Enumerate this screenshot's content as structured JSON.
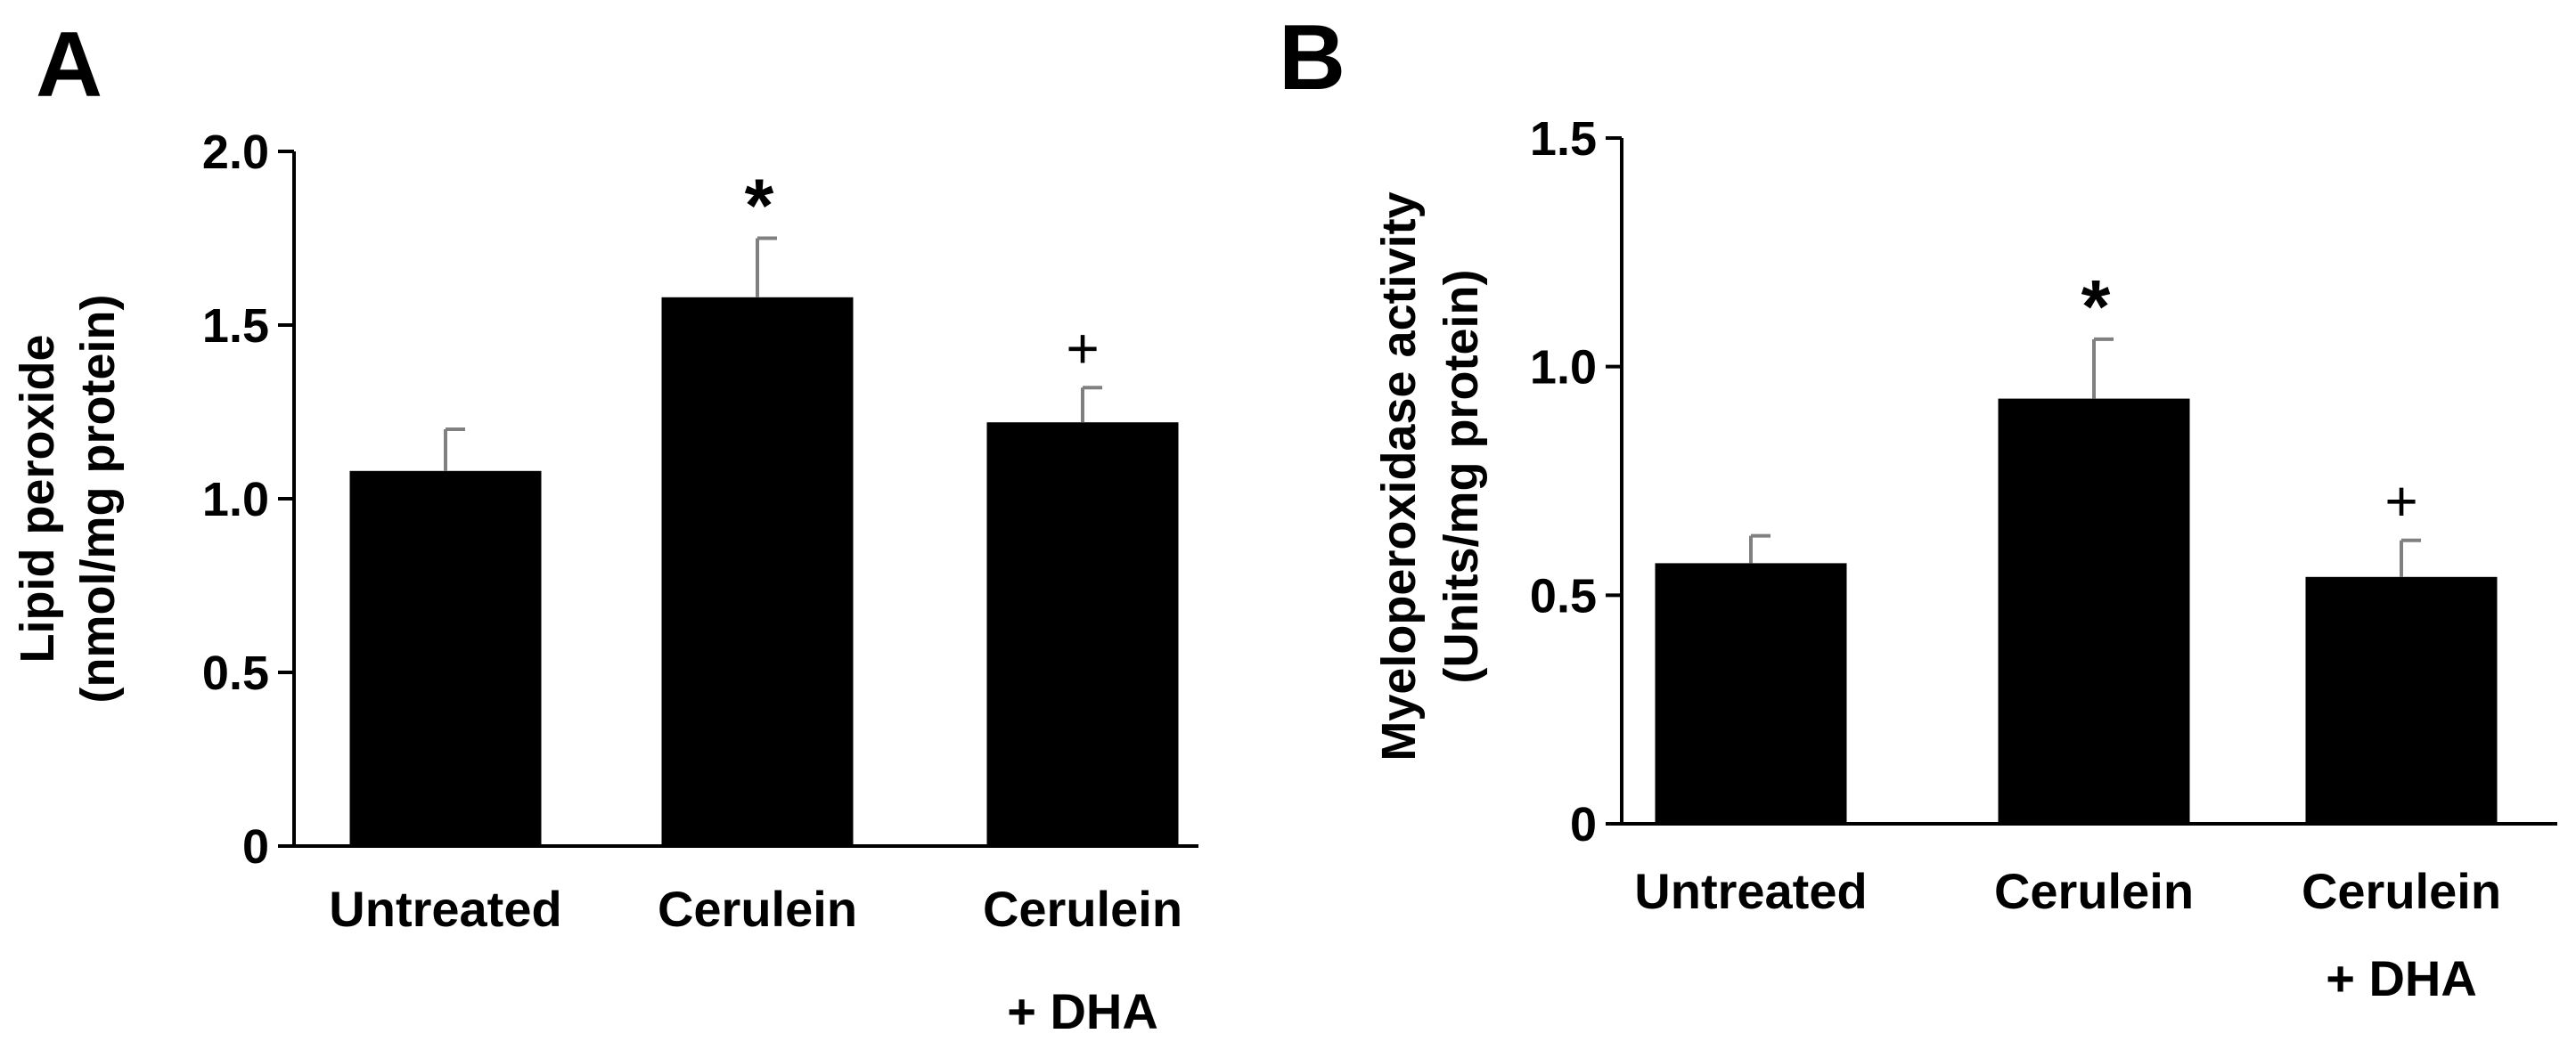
{
  "chart_data": [
    {
      "type": "bar",
      "panel": "A",
      "categories": [
        [
          "Untreated"
        ],
        [
          "Cerulein"
        ],
        [
          "Cerulein",
          "+ DHA"
        ]
      ],
      "values": [
        1.08,
        1.58,
        1.22
      ],
      "errors": [
        0.12,
        0.17,
        0.1
      ],
      "annotations": [
        "",
        "*",
        "+"
      ],
      "ylabel": [
        "Lipid peroxide",
        "(nmol/mg protein)"
      ],
      "ylim": [
        0,
        2.0
      ],
      "yticks": [
        0,
        0.5,
        1.0,
        1.5,
        2.0
      ],
      "ytick_labels": [
        "0",
        "0.5",
        "1.0",
        "1.5",
        "2.0"
      ],
      "bar_color": "#000000",
      "grid": false
    },
    {
      "type": "bar",
      "panel": "B",
      "categories": [
        [
          "Untreated"
        ],
        [
          "Cerulein"
        ],
        [
          "Cerulein",
          "+ DHA"
        ]
      ],
      "values": [
        0.57,
        0.93,
        0.54
      ],
      "errors": [
        0.06,
        0.13,
        0.08
      ],
      "annotations": [
        "",
        "*",
        "+"
      ],
      "ylabel": [
        "Myeloperoxidase activity",
        "(Units/mg protein)"
      ],
      "ylim": [
        0,
        1.5
      ],
      "yticks": [
        0,
        0.5,
        1.0,
        1.5
      ],
      "ytick_labels": [
        "0",
        "0.5",
        "1.0",
        "1.5"
      ],
      "bar_color": "#000000",
      "grid": false
    }
  ]
}
